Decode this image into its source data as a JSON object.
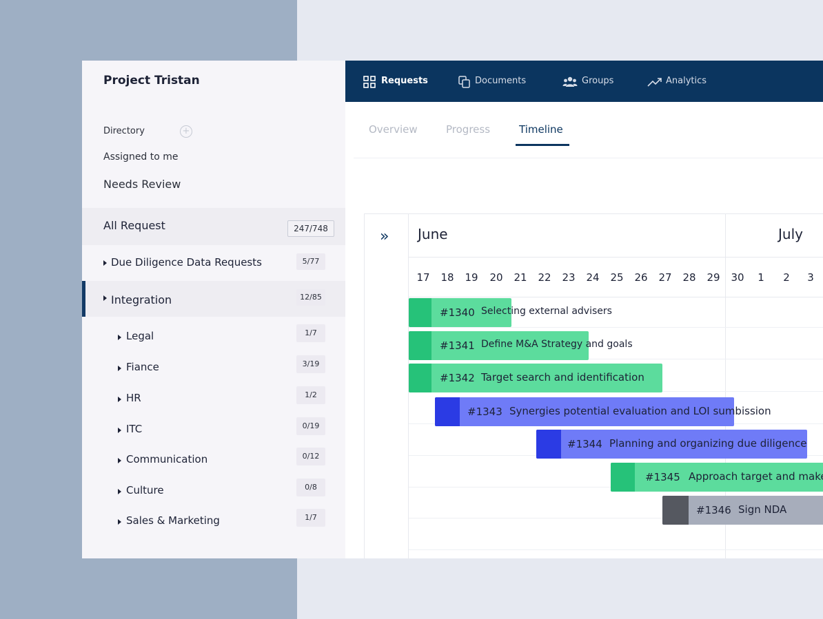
{
  "colors": {
    "nav_bg": "#0b355f",
    "green_light": "#5cdc9d",
    "green_dark": "#26c279",
    "blue_light": "#6f7bf7",
    "blue_dark": "#2b3be4",
    "gray_light": "#a7adbb",
    "gray_dark": "#555860"
  },
  "sidebar": {
    "project_title": "Project Tristan",
    "directory_label": "Directory",
    "add_symbol": "+",
    "assigned_label": "Assigned to me",
    "needs_review_label": "Needs Review",
    "all_request": {
      "label": "All Request",
      "count": "247/748"
    },
    "groups": [
      {
        "label": "Due Diligence Data Requests",
        "count": "5/77"
      },
      {
        "label": "Integration",
        "count": "12/85"
      }
    ],
    "subgroups": [
      {
        "label": "Legal",
        "count": "1/7"
      },
      {
        "label": "Fiance",
        "count": "3/19"
      },
      {
        "label": "HR",
        "count": "1/2"
      },
      {
        "label": "ITC",
        "count": "0/19"
      },
      {
        "label": "Communication",
        "count": "0/12"
      },
      {
        "label": "Culture",
        "count": "0/8"
      },
      {
        "label": "Sales & Marketing",
        "count": "1/7"
      }
    ]
  },
  "topnav": {
    "items": [
      {
        "label": "Requests",
        "icon": "grid-icon"
      },
      {
        "label": "Documents",
        "icon": "documents-icon"
      },
      {
        "label": "Groups",
        "icon": "groups-icon"
      },
      {
        "label": "Analytics",
        "icon": "analytics-icon"
      }
    ]
  },
  "tabs": [
    {
      "label": "Overview"
    },
    {
      "label": "Progress"
    },
    {
      "label": "Timeline"
    }
  ],
  "timeline": {
    "collapse_symbol": "»",
    "months": [
      "June",
      "July"
    ],
    "days": [
      "17",
      "18",
      "19",
      "20",
      "21",
      "22",
      "23",
      "24",
      "25",
      "26",
      "27",
      "28",
      "29",
      "30",
      "1",
      "2",
      "3"
    ],
    "tasks": [
      {
        "id": "#1340",
        "title": "Selecting external advisers",
        "color": "green"
      },
      {
        "id": "#1341",
        "title": "Define M&A Strategy and goals",
        "color": "green"
      },
      {
        "id": "#1342",
        "title": "Target search and identification",
        "color": "green"
      },
      {
        "id": "#1343",
        "title": "Synergies potential evaluation and LOI sumbission",
        "color": "blue"
      },
      {
        "id": "#1344",
        "title": "Planning and organizing due diligence",
        "color": "blue"
      },
      {
        "id": "#1345",
        "title": "Approach target and make",
        "color": "green"
      },
      {
        "id": "#1346",
        "title": "Sign NDA",
        "color": "gray"
      }
    ]
  }
}
